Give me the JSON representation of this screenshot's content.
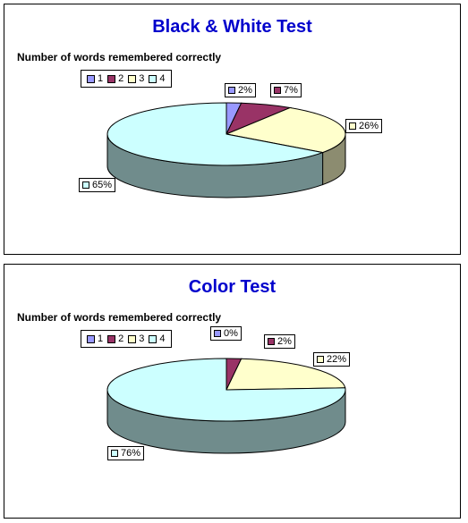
{
  "chart_data": [
    {
      "type": "pie",
      "title": "Black & White Test",
      "subtitle": "Number of words remembered correctly",
      "categories": [
        "1",
        "2",
        "3",
        "4"
      ],
      "values": [
        2,
        7,
        26,
        65
      ],
      "value_labels": [
        "2%",
        "7%",
        "26%",
        "65%"
      ],
      "colors": [
        "#9999ff",
        "#993366",
        "#ffffcc",
        "#ccffff"
      ],
      "legend_position": "top-left",
      "style": "3d"
    },
    {
      "type": "pie",
      "title": "Color Test",
      "subtitle": "Number of words remembered correctly",
      "categories": [
        "1",
        "2",
        "3",
        "4"
      ],
      "values": [
        0,
        2,
        22,
        76
      ],
      "value_labels": [
        "0%",
        "2%",
        "22%",
        "76%"
      ],
      "colors": [
        "#9999ff",
        "#993366",
        "#ffffcc",
        "#ccffff"
      ],
      "legend_position": "top-left",
      "style": "3d"
    }
  ]
}
